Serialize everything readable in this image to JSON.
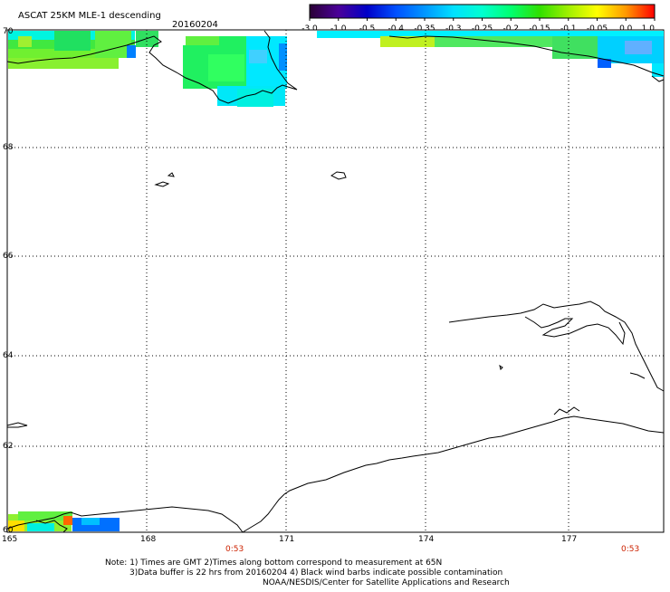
{
  "title": "ASCAT 25KM MLE-1 descending",
  "date": "20160204",
  "colorbar": {
    "ticks": [
      "-3.0",
      "-1.0",
      "-0.5",
      "-0.4",
      "-0.35",
      "-0.3",
      "-0.25",
      "-0.2",
      "-0.15",
      "-0.1",
      "-0.05",
      "0.0",
      "1.0"
    ],
    "colors": [
      "#2a0035",
      "#4b0099",
      "#0000c8",
      "#0050ff",
      "#0096ff",
      "#00e0ff",
      "#00ffd0",
      "#00ff70",
      "#30e000",
      "#a0f000",
      "#ffff00",
      "#ff9900",
      "#ff0000"
    ]
  },
  "axes": {
    "lat_labels": [
      "70",
      "68",
      "66",
      "64",
      "62",
      "60"
    ],
    "lon_labels": [
      "165",
      "168",
      "171",
      "174",
      "177"
    ]
  },
  "times": {
    "left": "0:53",
    "right": "0:53"
  },
  "notes": {
    "line1": "Note: 1) Times are GMT 2)Times along bottom correspond to measurement at 65N",
    "line2": "3)Data buffer is 22 hrs from 20160204 4) Black wind barbs indicate possible contamination",
    "line3": "NOAA/NESDIS/Center for Satellite Applications and Research"
  }
}
